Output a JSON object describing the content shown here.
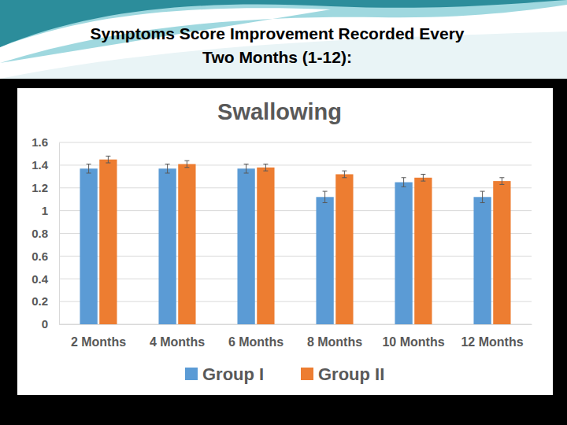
{
  "header": {
    "title": "Symptoms Score Improvement Recorded Every Two Months (1-12):"
  },
  "chart_data": {
    "type": "bar",
    "title": "Swallowing",
    "categories": [
      "2 Months",
      "4 Months",
      "6 Months",
      "8 Months",
      "10 Months",
      "12 Months"
    ],
    "series": [
      {
        "name": "Group I",
        "color": "#5b9bd5",
        "values": [
          1.37,
          1.37,
          1.37,
          1.12,
          1.25,
          1.12
        ],
        "errors": [
          0.04,
          0.04,
          0.04,
          0.05,
          0.04,
          0.05
        ]
      },
      {
        "name": "Group II",
        "color": "#ed7d31",
        "values": [
          1.45,
          1.41,
          1.38,
          1.32,
          1.29,
          1.26
        ],
        "errors": [
          0.03,
          0.03,
          0.03,
          0.03,
          0.03,
          0.03
        ]
      }
    ],
    "ylim": [
      0,
      1.6
    ],
    "yticks": [
      0,
      0.2,
      0.4,
      0.6,
      0.8,
      1,
      1.2,
      1.4,
      1.6
    ],
    "grid": true,
    "legend": "bottom"
  }
}
